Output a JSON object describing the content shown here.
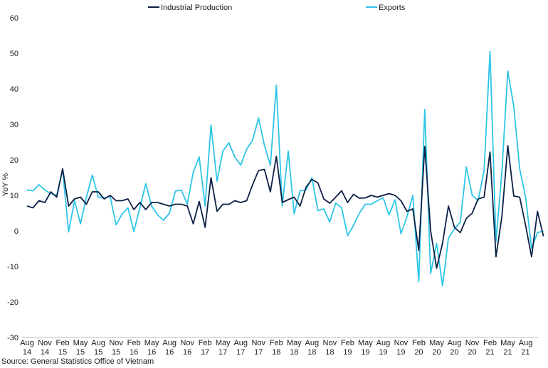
{
  "chart_data": {
    "type": "line",
    "ylabel": "YoY %",
    "ylim": [
      -30,
      60
    ],
    "yticks": [
      -30,
      -20,
      -10,
      0,
      10,
      20,
      30,
      40,
      50,
      60
    ],
    "grid": false,
    "legend_position": "top-center",
    "x_start": "Aug 2014",
    "x_end": "Oct 2021",
    "tick_labels": [
      [
        "Aug",
        "14"
      ],
      [
        "Nov",
        "14"
      ],
      [
        "Feb",
        "15"
      ],
      [
        "May",
        "15"
      ],
      [
        "Aug",
        "15"
      ],
      [
        "Nov",
        "15"
      ],
      [
        "Feb",
        "16"
      ],
      [
        "May",
        "16"
      ],
      [
        "Aug",
        "16"
      ],
      [
        "Nov",
        "16"
      ],
      [
        "Feb",
        "17"
      ],
      [
        "May",
        "17"
      ],
      [
        "Aug",
        "17"
      ],
      [
        "Nov",
        "17"
      ],
      [
        "Feb",
        "18"
      ],
      [
        "May",
        "18"
      ],
      [
        "Aug",
        "18"
      ],
      [
        "Nov",
        "18"
      ],
      [
        "Feb",
        "19"
      ],
      [
        "May",
        "19"
      ],
      [
        "Aug",
        "19"
      ],
      [
        "Nov",
        "19"
      ],
      [
        "Feb",
        "20"
      ],
      [
        "May",
        "20"
      ],
      [
        "Aug",
        "20"
      ],
      [
        "Nov",
        "20"
      ],
      [
        "Feb",
        "21"
      ],
      [
        "May",
        "21"
      ],
      [
        "Aug",
        "21"
      ]
    ],
    "series": [
      {
        "name": "Industrial Production",
        "color": "#0d1f45",
        "values": [
          7.0,
          6.5,
          8.5,
          8.0,
          11.0,
          9.5,
          17.5,
          7.0,
          9.0,
          9.5,
          7.5,
          11.0,
          11.0,
          9.0,
          10.0,
          8.5,
          8.5,
          9.0,
          6.0,
          8.0,
          6.0,
          8.0,
          8.0,
          7.5,
          7.0,
          7.5,
          7.5,
          7.0,
          2.0,
          8.3,
          1.0,
          15.0,
          5.5,
          7.5,
          7.5,
          8.5,
          8.0,
          8.5,
          13.0,
          17.0,
          17.3,
          11.0,
          21.0,
          8.0,
          8.8,
          9.5,
          7.0,
          12.3,
          14.5,
          13.5,
          9.0,
          7.8,
          9.5,
          11.3,
          8.0,
          10.3,
          9.2,
          9.3,
          10.0,
          9.5,
          10.0,
          10.5,
          10.0,
          8.5,
          5.5,
          6.2,
          -5.5,
          23.8,
          0.0,
          -10.5,
          -3.5,
          7.0,
          1.0,
          -0.5,
          3.5,
          5.0,
          9.0,
          9.5,
          22.2,
          -7.3,
          4.0,
          24.0,
          9.8,
          9.5,
          1.5,
          -7.3,
          5.5,
          -1.5
        ]
      },
      {
        "name": "Exports",
        "color": "#2ec5e6",
        "values": [
          11.5,
          11.3,
          13.0,
          11.5,
          10.5,
          10.0,
          17.3,
          -0.3,
          8.5,
          2.0,
          9.5,
          15.7,
          9.5,
          9.2,
          9.7,
          1.7,
          4.7,
          6.5,
          -0.2,
          6.5,
          13.3,
          7.0,
          4.5,
          3.0,
          5.0,
          11.2,
          11.5,
          7.5,
          16.5,
          20.8,
          7.0,
          29.8,
          14.0,
          22.5,
          24.8,
          20.8,
          18.5,
          23.0,
          25.5,
          31.8,
          24.0,
          18.5,
          41.0,
          7.0,
          22.5,
          4.8,
          11.3,
          11.5,
          15.0,
          5.7,
          6.2,
          2.5,
          7.8,
          6.5,
          -1.3,
          1.5,
          5.0,
          7.5,
          7.5,
          8.5,
          9.3,
          4.5,
          8.8,
          -0.8,
          4.0,
          10.0,
          -14.3,
          34.2,
          -12.0,
          -3.5,
          -15.5,
          -2.0,
          0.5,
          2.5,
          18.0,
          10.0,
          8.5,
          17.0,
          50.5,
          -3.0,
          16.5,
          45.0,
          35.0,
          17.5,
          9.5,
          -5.0,
          -0.5,
          0.0
        ]
      }
    ]
  },
  "source_text": "Source: General Statistics Office of Vietnam"
}
